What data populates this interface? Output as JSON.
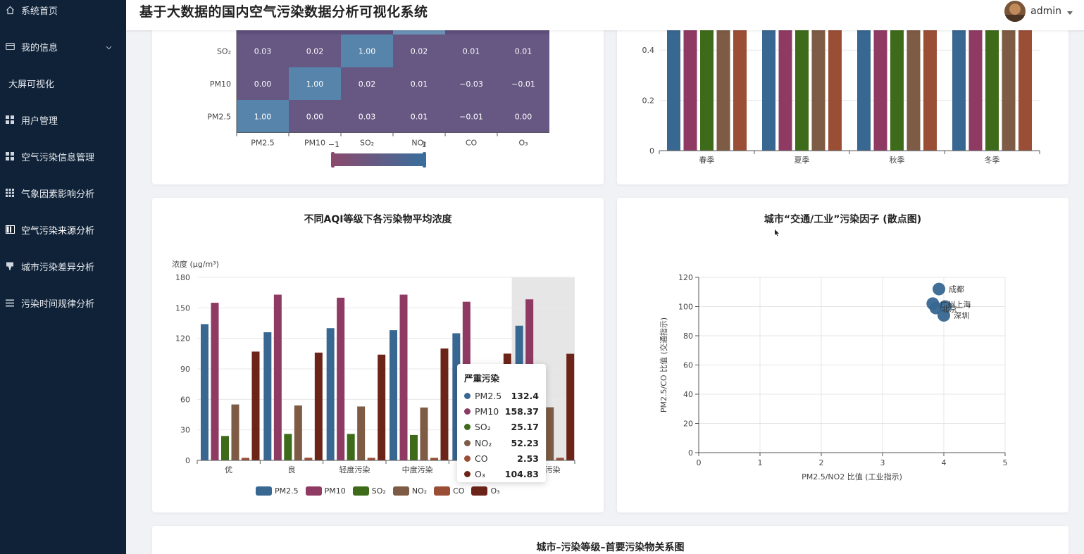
{
  "header": {
    "title": "基于大数据的国内空气污染数据分析可视化系统",
    "user": "admin"
  },
  "sidebar": {
    "items": [
      {
        "label": "系统首页",
        "icon": "home-icon"
      },
      {
        "label": "我的信息",
        "icon": "card-icon"
      },
      {
        "label": "大屏可视化",
        "icon": ""
      },
      {
        "label": "用户管理",
        "icon": "grid-icon"
      },
      {
        "label": "空气污染信息管理",
        "icon": "grid-icon"
      },
      {
        "label": "气象因素影响分析",
        "icon": "apps-icon"
      },
      {
        "label": "空气污染来源分析",
        "icon": "book-icon"
      },
      {
        "label": "城市污染差异分析",
        "icon": "stamp-icon"
      },
      {
        "label": "污染时间规律分析",
        "icon": "list-icon"
      }
    ]
  },
  "colors": {
    "PM2.5": "#386791",
    "PM10": "#8e3a62",
    "SO2": "#3e6b1a",
    "NO2": "#7d5b44",
    "CO": "#9a4e36",
    "O3": "#6d2418",
    "heat_low": "#8a4a6e",
    "heat_high": "#3a6e9c",
    "heat_mid": "#5f4f7c",
    "sidebar_bg": "#0f2238"
  },
  "cards": {
    "aqi_title": "不同AQI等级下各污染物平均浓度",
    "scatter_title": "城市“交通/工业”污染因子 (散点图)",
    "bottom_title": "城市–污染等级–首要污染物关系图"
  },
  "tooltip": {
    "title": "严重污染",
    "rows": [
      {
        "name": "PM2.5",
        "value": "132.4"
      },
      {
        "name": "PM10",
        "value": "158.37"
      },
      {
        "name": "SO₂",
        "value": "25.17"
      },
      {
        "name": "NO₂",
        "value": "52.23"
      },
      {
        "name": "CO",
        "value": "2.53"
      },
      {
        "name": "O₃",
        "value": "104.83"
      }
    ]
  },
  "chart_data": [
    {
      "type": "heatmap",
      "x_labels": [
        "PM2.5",
        "PM10",
        "SO₂",
        "NO₂",
        "CO",
        "O₃"
      ],
      "y_labels_visible": [
        "SO₂",
        "PM10",
        "PM2.5"
      ],
      "rows": [
        [
          "0.03",
          "0.02",
          "1.00",
          "0.02",
          "0.01",
          "0.01"
        ],
        [
          "0.00",
          "1.00",
          "0.02",
          "0.01",
          "−0.03",
          "−0.01"
        ],
        [
          "1.00",
          "0.00",
          "0.03",
          "0.01",
          "−0.01",
          "0.00"
        ]
      ],
      "visual_map": {
        "min": "−1",
        "max": "1"
      }
    },
    {
      "type": "bar",
      "categories": [
        "春季",
        "夏季",
        "秋季",
        "冬季"
      ],
      "y_ticks": [
        "0",
        "0.2",
        "0.4"
      ],
      "series_count": 5,
      "note": "bars extend beyond visible top of card"
    },
    {
      "type": "bar",
      "title": "不同AQI等级下各污染物平均浓度",
      "ylabel": "浓度 (μg/m³)",
      "ylim": [
        0,
        180
      ],
      "y_ticks": [
        "0",
        "30",
        "60",
        "90",
        "120",
        "150",
        "180"
      ],
      "categories": [
        "优",
        "良",
        "轻度污染",
        "中度污染",
        "重度污染",
        "严重污染"
      ],
      "category_labels_visible": [
        "优",
        "良",
        "轻度污染",
        "中度污染",
        "",
        "污染"
      ],
      "series": [
        {
          "name": "PM2.5",
          "label": "PM2.5",
          "values": [
            134,
            126,
            130,
            128,
            125,
            132.4
          ]
        },
        {
          "name": "PM10",
          "label": "PM10",
          "values": [
            155,
            163,
            160,
            163,
            156,
            158.37
          ]
        },
        {
          "name": "SO2",
          "label": "SO₂",
          "values": [
            24,
            26,
            26,
            25,
            25,
            25.17
          ]
        },
        {
          "name": "NO2",
          "label": "NO₂",
          "values": [
            55,
            54,
            53,
            52,
            53,
            52.23
          ]
        },
        {
          "name": "CO",
          "label": "CO",
          "values": [
            2.5,
            2.6,
            2.5,
            2.5,
            2.5,
            2.53
          ]
        },
        {
          "name": "O3",
          "label": "O₃",
          "values": [
            107,
            106,
            104,
            110,
            105,
            104.83
          ]
        }
      ],
      "highlight_category": 5,
      "legend_position": "bottom"
    },
    {
      "type": "scatter",
      "xlabel": "PM2.5/NO2 比值 (工业指示)",
      "ylabel": "PM2.5/CO 比值 (交通指示)",
      "xlim": [
        0,
        5
      ],
      "ylim": [
        0,
        120
      ],
      "x_ticks": [
        "0",
        "1",
        "2",
        "3",
        "4",
        "5"
      ],
      "y_ticks": [
        "0",
        "20",
        "40",
        "60",
        "80",
        "100",
        "120"
      ],
      "points": [
        {
          "name": "成都",
          "x": 3.92,
          "y": 112
        },
        {
          "name": "广州",
          "x": 3.82,
          "y": 102
        },
        {
          "name": "北京",
          "x": 3.87,
          "y": 99
        },
        {
          "name": "上海",
          "x": 4.02,
          "y": 100
        },
        {
          "name": "深圳",
          "x": 4.0,
          "y": 94
        }
      ],
      "visible_label_text": [
        {
          "text": "成都"
        },
        {
          "text": "广州上海"
        },
        {
          "text": "北京"
        },
        {
          "text": "深圳"
        }
      ]
    }
  ]
}
